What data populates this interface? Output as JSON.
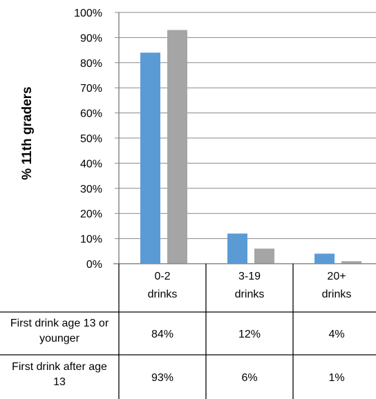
{
  "chart_data": {
    "type": "bar",
    "ylabel": "% 11th graders",
    "ylim": [
      0,
      100
    ],
    "yticks": [
      "0%",
      "10%",
      "20%",
      "30%",
      "40%",
      "50%",
      "60%",
      "70%",
      "80%",
      "90%",
      "100%"
    ],
    "categories": [
      [
        "0-2",
        "drinks"
      ],
      [
        "3-19",
        "drinks"
      ],
      [
        "20+",
        "drinks"
      ]
    ],
    "grid": true,
    "series": [
      {
        "name": [
          "First drink age 13 or",
          "younger"
        ],
        "color": "#5b9bd5",
        "values": [
          84,
          12,
          4
        ],
        "labels": [
          "84%",
          "12%",
          "4%"
        ]
      },
      {
        "name": [
          "First drink after age",
          "13"
        ],
        "color": "#a5a5a5",
        "values": [
          93,
          6,
          1
        ],
        "labels": [
          "93%",
          "6%",
          "1%"
        ]
      }
    ]
  }
}
